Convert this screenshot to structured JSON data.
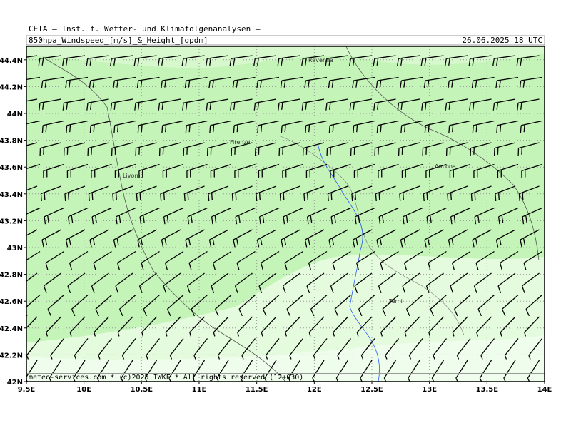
{
  "header": {
    "institute": "CETA — Inst. f. Wetter- und Klimafolgenanalysen —",
    "product": "850hpa_Windspeed_[m/s]_&_Height_[gpdm]",
    "valid": "26.06.2025 18 UTC"
  },
  "map": {
    "lonlim": [
      9.5,
      14
    ],
    "latlim": [
      42,
      44.5
    ],
    "lon_ticks": [
      {
        "value": 9.5,
        "label": "9.5E"
      },
      {
        "value": 10,
        "label": "10E"
      },
      {
        "value": 10.5,
        "label": "10.5E"
      },
      {
        "value": 11,
        "label": "11E"
      },
      {
        "value": 11.5,
        "label": "11.5E"
      },
      {
        "value": 12,
        "label": "12E"
      },
      {
        "value": 12.5,
        "label": "12.5E"
      },
      {
        "value": 13,
        "label": "13E"
      },
      {
        "value": 13.5,
        "label": "13.5E"
      },
      {
        "value": 14,
        "label": "14E"
      }
    ],
    "lat_ticks": [
      {
        "value": 42,
        "label": "42N"
      },
      {
        "value": 42.2,
        "label": "42.2N"
      },
      {
        "value": 42.4,
        "label": "42.4N"
      },
      {
        "value": 42.6,
        "label": "42.6N"
      },
      {
        "value": 42.8,
        "label": "42.8N"
      },
      {
        "value": 43,
        "label": "43N"
      },
      {
        "value": 43.2,
        "label": "43.2N"
      },
      {
        "value": 43.4,
        "label": "43.4N"
      },
      {
        "value": 43.6,
        "label": "43.6N"
      },
      {
        "value": 43.8,
        "label": "43.8N"
      },
      {
        "value": 44,
        "label": "44N"
      },
      {
        "value": 44.2,
        "label": "44.2N"
      },
      {
        "value": 44.4,
        "label": "44.4N"
      }
    ],
    "cities": [
      "Ravenna",
      "Firenze",
      "Livorno",
      "Ancona",
      "Terni"
    ]
  },
  "footer": "meteo-services.com * (c)2025 IWKF * All rights reserved (12+030)"
}
